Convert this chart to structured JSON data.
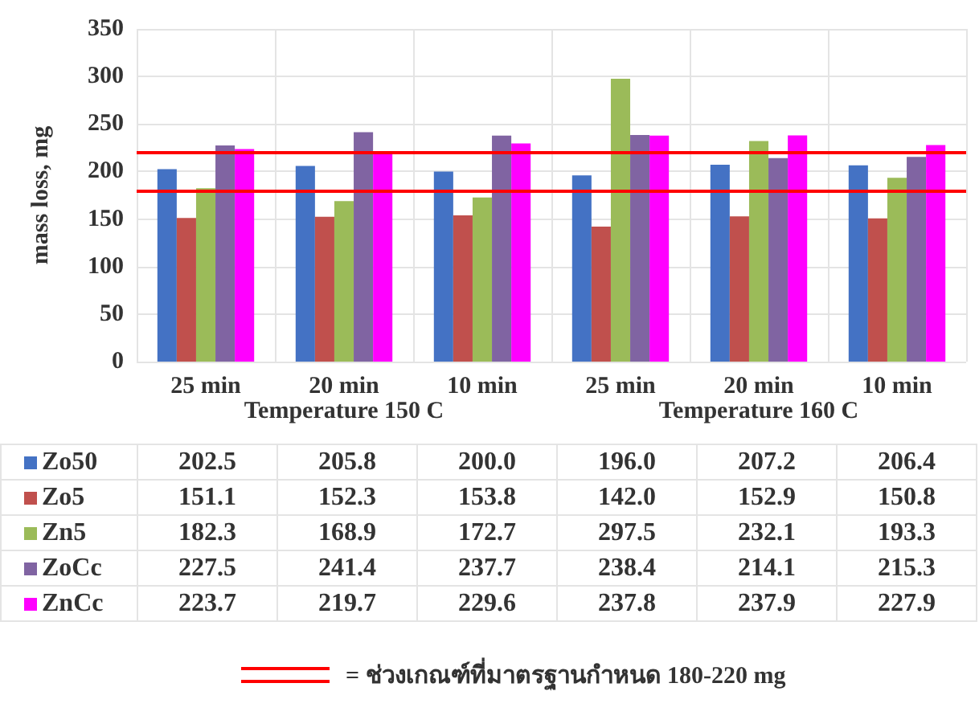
{
  "chart_data": {
    "type": "bar",
    "ylabel": "mass loss, mg",
    "categories": [
      "25 min",
      "20 min",
      "10 min",
      "25 min",
      "20 min",
      "10 min"
    ],
    "annotations": [
      "Temperature 150 C",
      "Temperature 160 C"
    ],
    "series": [
      {
        "name": "Zo50",
        "color": "#4472c4",
        "values": [
          202.5,
          205.8,
          200.0,
          196.0,
          207.2,
          206.4
        ],
        "value_labels": [
          "202.5",
          "205.8",
          "200.0",
          "196.0",
          "207.2",
          "206.4"
        ]
      },
      {
        "name": "Zo5",
        "color": "#c0504d",
        "values": [
          151.1,
          152.3,
          153.8,
          142.0,
          152.9,
          150.8
        ],
        "value_labels": [
          "151.1",
          "152.3",
          "153.8",
          "142.0",
          "152.9",
          "150.8"
        ]
      },
      {
        "name": "Zn5",
        "color": "#9bbb59",
        "values": [
          182.3,
          168.9,
          172.7,
          297.5,
          232.1,
          193.3
        ],
        "value_labels": [
          "182.3",
          "168.9",
          "172.7",
          "297.5",
          "232.1",
          "193.3"
        ]
      },
      {
        "name": "ZoCc",
        "color": "#8064a2",
        "values": [
          227.5,
          241.4,
          237.7,
          238.4,
          214.1,
          215.3
        ],
        "value_labels": [
          "227.5",
          "241.4",
          "237.7",
          "238.4",
          "214.1",
          "215.3"
        ]
      },
      {
        "name": "ZnCc",
        "color": "#ff00ff",
        "values": [
          223.7,
          219.7,
          229.6,
          237.8,
          237.9,
          227.9
        ],
        "value_labels": [
          "223.7",
          "219.7",
          "229.6",
          "237.8",
          "237.9",
          "227.9"
        ]
      }
    ],
    "ylim": [
      0,
      350
    ],
    "yticks": [
      0,
      50,
      100,
      150,
      200,
      250,
      300,
      350
    ],
    "ref_lines": [
      {
        "axis": "y",
        "value": 220,
        "label": "= ช่วงเกณฑ์ที่มาตรฐานกำหนด 180-220 mg",
        "color": "#ff0000"
      },
      {
        "axis": "y",
        "value": 180,
        "label": null,
        "color": "#ff0000"
      }
    ],
    "grid": true,
    "legend": "bottom"
  }
}
